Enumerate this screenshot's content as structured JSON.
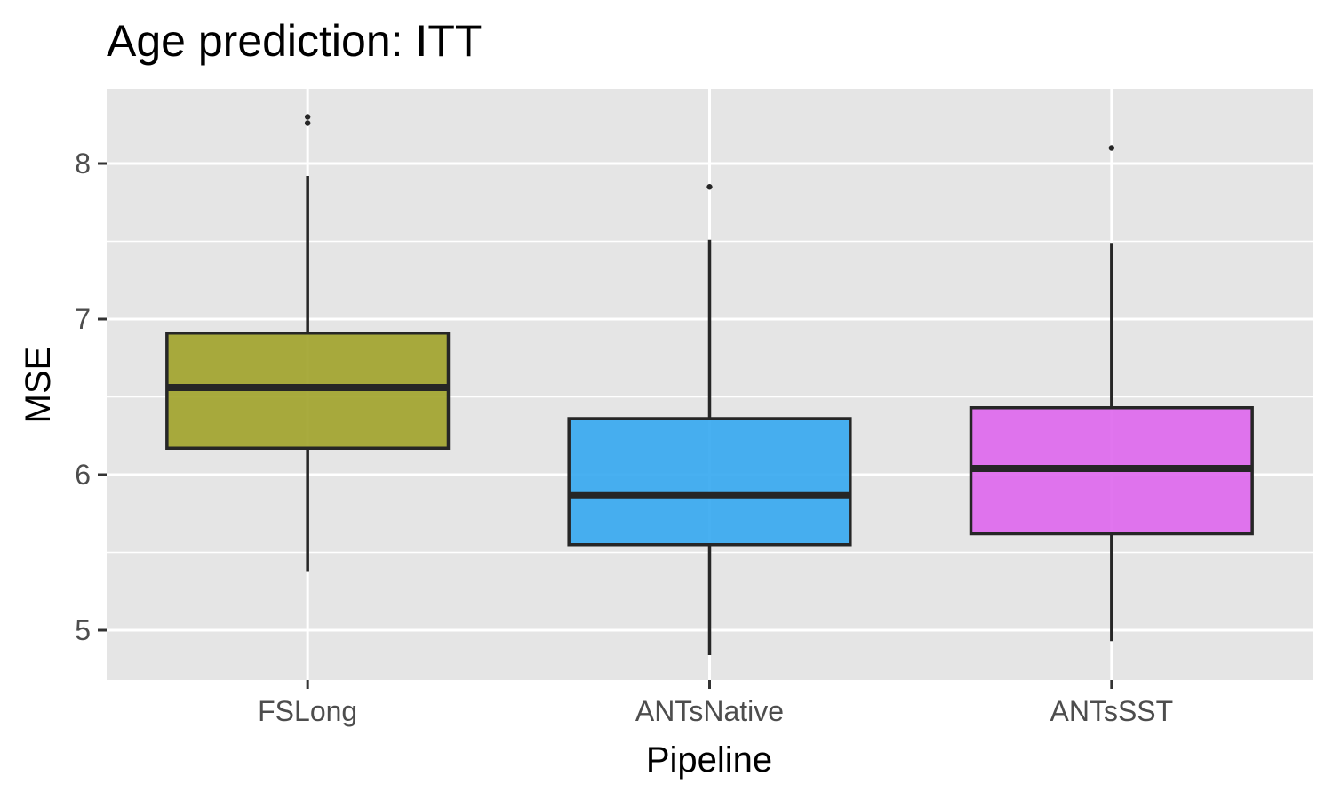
{
  "chart_data": {
    "type": "box",
    "title": "Age prediction: ITT",
    "xlabel": "Pipeline",
    "ylabel": "MSE",
    "categories": [
      "FSLong",
      "ANTsNative",
      "ANTsSST"
    ],
    "yticks": [
      5,
      6,
      7,
      8
    ],
    "ylim": [
      4.68,
      8.48
    ],
    "grid": true,
    "legend": "none",
    "boxes": [
      {
        "category": "FSLong",
        "whisker_low": 5.38,
        "q1": 6.17,
        "median": 6.56,
        "q3": 6.91,
        "whisker_high": 7.92,
        "outliers": [
          8.26,
          8.3
        ],
        "color": "#A3A52F"
      },
      {
        "category": "ANTsNative",
        "whisker_low": 4.84,
        "q1": 5.55,
        "median": 5.87,
        "q3": 6.36,
        "whisker_high": 7.51,
        "outliers": [
          7.85
        ],
        "color": "#3AAAF0"
      },
      {
        "category": "ANTsSST",
        "whisker_low": 4.93,
        "q1": 5.62,
        "median": 6.04,
        "q3": 6.43,
        "whisker_high": 7.49,
        "outliers": [
          8.1
        ],
        "color": "#DF6AEE"
      }
    ],
    "colors": {
      "panel": "#E5E5E5",
      "grid": "#FFFFFF",
      "line": "#262626",
      "tick": "#333333"
    }
  }
}
